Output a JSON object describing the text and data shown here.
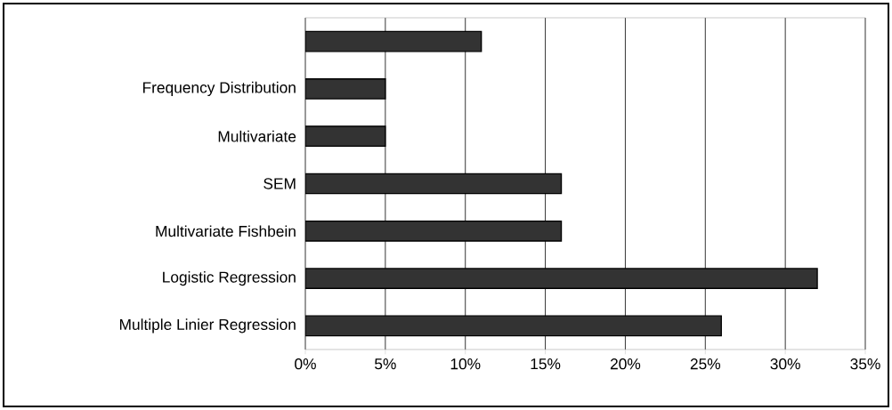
{
  "chart_data": {
    "type": "bar",
    "orientation": "horizontal",
    "categories": [
      null,
      "Frequency Distribution",
      "Multivariate",
      "SEM",
      "Multivariate Fishbein",
      "Logistic Regression",
      "Multiple Linier Regression"
    ],
    "values": [
      11,
      5,
      5,
      16,
      16,
      32,
      26
    ],
    "color": "#333333",
    "xlim": [
      0,
      35
    ],
    "xticks": [
      {
        "value": 0,
        "label": "0%"
      },
      {
        "value": 5,
        "label": "5%"
      },
      {
        "value": 10,
        "label": "10%"
      },
      {
        "value": 15,
        "label": "15%"
      },
      {
        "value": 20,
        "label": "20%"
      },
      {
        "value": 25,
        "label": "25%"
      },
      {
        "value": 30,
        "label": "30%"
      },
      {
        "value": 35,
        "label": "35%"
      }
    ],
    "grid": "x"
  }
}
